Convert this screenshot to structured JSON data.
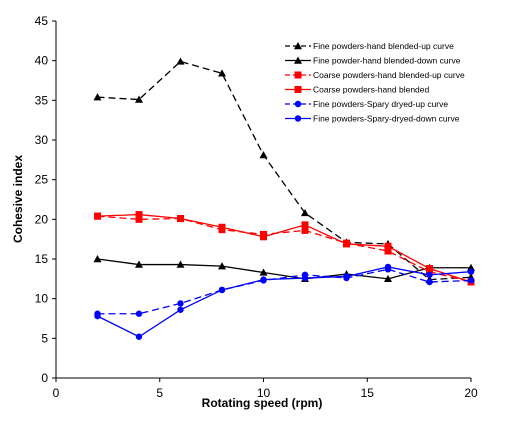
{
  "chart_data": {
    "type": "line",
    "title": "",
    "xlabel": "Rotating speed (rpm)",
    "ylabel": "Cohesive index",
    "xlim": [
      0,
      20
    ],
    "ylim": [
      0,
      45
    ],
    "x_ticks": [
      0,
      5,
      10,
      15,
      20
    ],
    "y_ticks": [
      0,
      5,
      10,
      15,
      20,
      25,
      30,
      35,
      40,
      45
    ],
    "grid": false,
    "legend_position": "top-right",
    "series": [
      {
        "name": "Fine powders-hand blended-up curve",
        "color": "#000000",
        "marker": "triangle",
        "dash": "dashed",
        "x": [
          2,
          4,
          6,
          8,
          10,
          12,
          14,
          16,
          18,
          20
        ],
        "y": [
          35.4,
          35.1,
          39.9,
          38.4,
          28.1,
          20.8,
          17.1,
          16.9,
          12.4,
          12.7
        ]
      },
      {
        "name": "Fine powder-hand blended-down curve",
        "color": "#000000",
        "marker": "triangle",
        "dash": "solid",
        "x": [
          2,
          4,
          6,
          8,
          10,
          12,
          14,
          16,
          18,
          20
        ],
        "y": [
          15.0,
          14.3,
          14.3,
          14.1,
          13.3,
          12.5,
          13.1,
          12.5,
          13.9,
          13.9
        ]
      },
      {
        "name": "Coarse powders-hand blended-up curve",
        "color": "#ff0000",
        "marker": "square",
        "dash": "dashed",
        "x": [
          2,
          4,
          6,
          8,
          10,
          12,
          14,
          16,
          18,
          20
        ],
        "y": [
          20.4,
          20.0,
          20.1,
          18.7,
          18.1,
          18.6,
          17.0,
          16.0,
          13.4,
          12.1
        ]
      },
      {
        "name": "Coarse powders-hand blended",
        "color": "#ff0000",
        "marker": "square",
        "dash": "solid",
        "x": [
          2,
          4,
          6,
          8,
          10,
          12,
          14,
          16,
          18,
          20
        ],
        "y": [
          20.4,
          20.6,
          20.1,
          19.0,
          17.8,
          19.3,
          16.9,
          16.6,
          13.8,
          12.1
        ]
      },
      {
        "name": "Fine powders-Spary dryed-up curve",
        "color": "#0000ff",
        "marker": "circle",
        "dash": "dashed",
        "x": [
          2,
          4,
          6,
          8,
          10,
          12,
          14,
          16,
          18,
          20
        ],
        "y": [
          8.1,
          8.1,
          9.4,
          11.1,
          12.3,
          13.0,
          12.6,
          13.7,
          12.1,
          12.3
        ]
      },
      {
        "name": "Fine powders-Spary-dryed-down curve",
        "color": "#0000ff",
        "marker": "circle",
        "dash": "solid",
        "x": [
          2,
          4,
          6,
          8,
          10,
          12,
          14,
          16,
          18,
          20
        ],
        "y": [
          7.8,
          5.2,
          8.6,
          11.1,
          12.4,
          12.6,
          12.8,
          14.0,
          13.0,
          13.4
        ]
      }
    ]
  }
}
